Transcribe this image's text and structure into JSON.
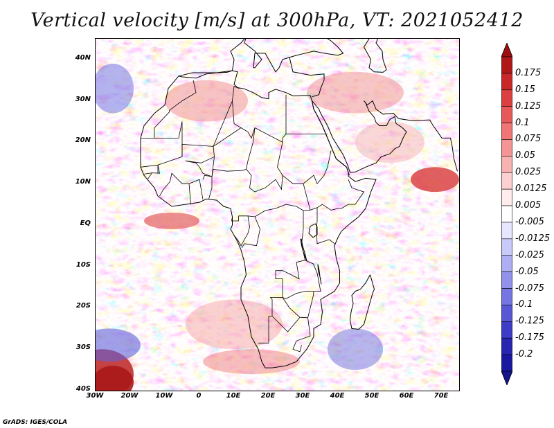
{
  "title": "Vertical velocity [m/s] at 300hPa, VT: 2021052412",
  "credit": "GrADS: IGES/COLA",
  "map": {
    "lat_labels": [
      {
        "text": "40N",
        "lat": 40
      },
      {
        "text": "30N",
        "lat": 30
      },
      {
        "text": "20N",
        "lat": 20
      },
      {
        "text": "10N",
        "lat": 10
      },
      {
        "text": "EQ",
        "lat": 0
      },
      {
        "text": "10S",
        "lat": -10
      },
      {
        "text": "20S",
        "lat": -20
      },
      {
        "text": "30S",
        "lat": -30
      },
      {
        "text": "40S",
        "lat": -40
      }
    ],
    "lon_labels": [
      {
        "text": "30W",
        "lon": -30
      },
      {
        "text": "20W",
        "lon": -20
      },
      {
        "text": "10W",
        "lon": -10
      },
      {
        "text": "0",
        "lon": 0
      },
      {
        "text": "10E",
        "lon": 10
      },
      {
        "text": "20E",
        "lon": 20
      },
      {
        "text": "30E",
        "lon": 30
      },
      {
        "text": "40E",
        "lon": 40
      },
      {
        "text": "50E",
        "lon": 50
      },
      {
        "text": "60E",
        "lon": 60
      },
      {
        "text": "70E",
        "lon": 70
      }
    ],
    "lon_range": [
      -30,
      75
    ],
    "lat_range": [
      -40,
      45
    ]
  },
  "colorbar": {
    "levels": [
      "0.175",
      "0.15",
      "0.125",
      "0.1",
      "0.075",
      "0.05",
      "0.025",
      "0.0125",
      "0.005",
      "-0.005",
      "-0.0125",
      "-0.025",
      "-0.05",
      "-0.075",
      "-0.1",
      "-0.125",
      "-0.175",
      "-0.2"
    ],
    "colors": [
      "#b01818",
      "#c82828",
      "#dc4040",
      "#e85a5a",
      "#f07676",
      "#f59494",
      "#f9b2b2",
      "#fcd0d0",
      "#ffecec",
      "#ffffff",
      "#e6e6ff",
      "#cacafa",
      "#aeaef4",
      "#9292ec",
      "#7676e2",
      "#5858d6",
      "#3c3cc6",
      "#2626b0",
      "#1818a0"
    ],
    "top_color": "#a01010",
    "bottom_color": "#14148c"
  }
}
